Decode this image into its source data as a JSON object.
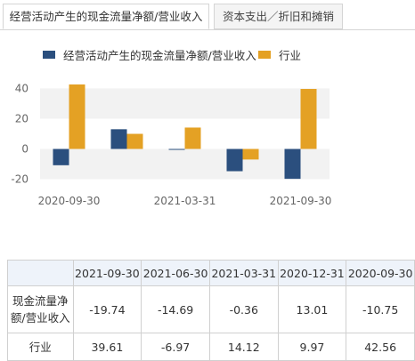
{
  "tabs": [
    {
      "label": "经营活动产生的现金流量净额/营业收入",
      "active": true
    },
    {
      "label": "资本支出／折旧和摊销",
      "active": false
    }
  ],
  "colors": {
    "series1": "#2b4f7e",
    "series2": "#e4a124",
    "band": "#f2f2f2",
    "tick": "#666666"
  },
  "chart_data": {
    "type": "bar",
    "categories": [
      "2020-09-30",
      "2020-12-31",
      "2021-03-31",
      "2021-06-30",
      "2021-09-30"
    ],
    "series": [
      {
        "name": "经营活动产生的现金流量净额/营业收入",
        "values": [
          -10.75,
          13.01,
          -0.36,
          -14.69,
          -19.74
        ]
      },
      {
        "name": "行业",
        "values": [
          42.56,
          9.97,
          14.12,
          -6.97,
          39.61
        ]
      }
    ],
    "xtick_labels": [
      "2020-09-30",
      "2021-03-31",
      "2021-09-30"
    ],
    "yticks": [
      40,
      20,
      0,
      -20
    ],
    "ylim": [
      -22,
      42.56
    ],
    "legend": "top"
  },
  "table": {
    "corner": "",
    "headers": [
      "2021-09-30",
      "2021-06-30",
      "2021-03-31",
      "2020-12-31",
      "2020-09-30"
    ],
    "rows": [
      {
        "label": "现金流量净额/营业收入",
        "values": [
          "-19.74",
          "-14.69",
          "-0.36",
          "13.01",
          "-10.75"
        ]
      },
      {
        "label": "行业",
        "values": [
          "39.61",
          "-6.97",
          "14.12",
          "9.97",
          "42.56"
        ]
      }
    ]
  }
}
